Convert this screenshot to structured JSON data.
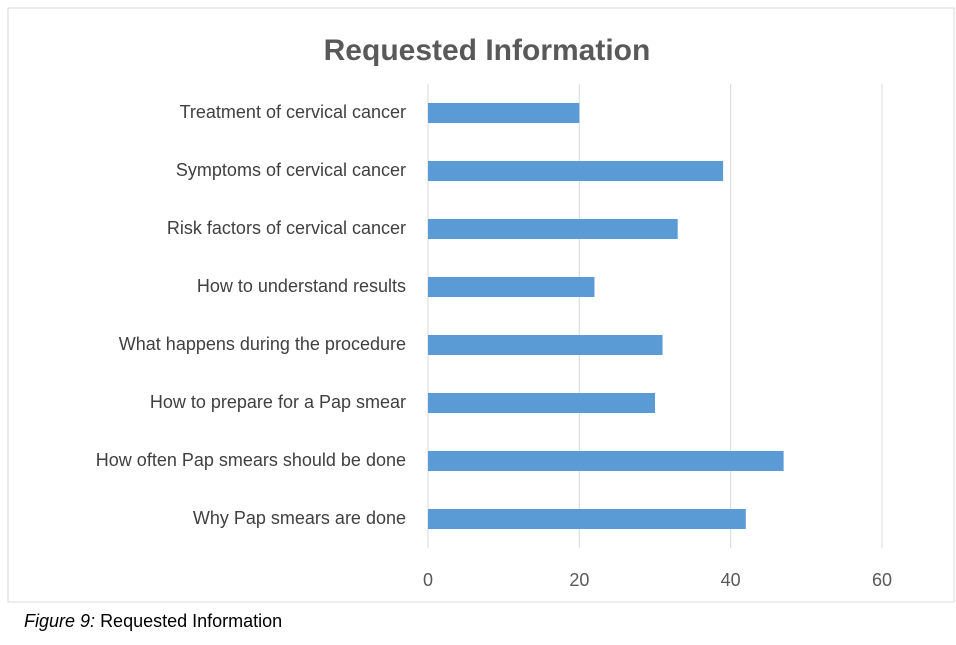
{
  "chart_data": {
    "type": "barh",
    "title": "Requested Information",
    "categories": [
      "Treatment of cervical cancer",
      "Symptoms of cervical cancer",
      "Risk factors of cervical cancer",
      "How to understand results",
      "What happens during the procedure",
      "How to prepare for a Pap smear",
      "How often Pap smears should be done",
      "Why Pap smears are done"
    ],
    "values": [
      20,
      39,
      33,
      22,
      31,
      30,
      47,
      42
    ],
    "color": "#5b9bd5",
    "xlim": [
      0,
      60
    ],
    "xticks": [
      0,
      20,
      40,
      60
    ],
    "grid": true
  },
  "caption": {
    "label": "Figure 9:",
    "text": "Requested Information"
  }
}
